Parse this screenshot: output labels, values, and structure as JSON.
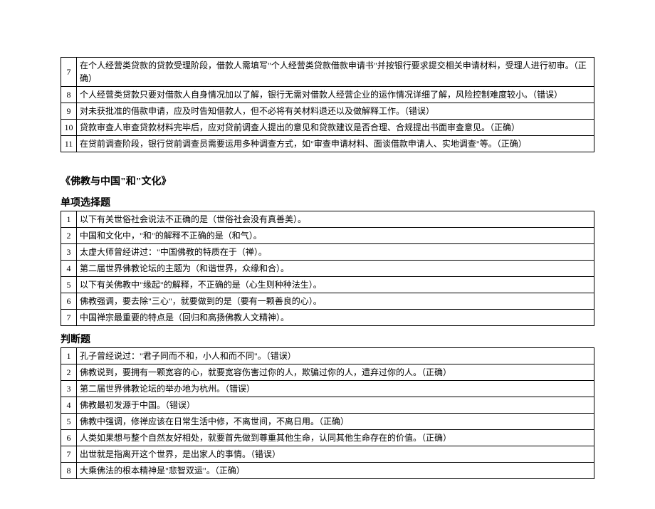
{
  "table1": {
    "rows": [
      {
        "n": "7",
        "t": "在个人经营类贷款的贷款受理阶段，借款人需填写\"个人经营类贷款借款申请书\"并按银行要求提交相关申请材料，受理人进行初审。（正确）"
      },
      {
        "n": "8",
        "t": "个人经营类贷款只要对借款人自身情况加以了解，银行无需对借款人经营企业的运作情况详细了解，风险控制难度较小。（错误）"
      },
      {
        "n": "9",
        "t": "对未获批准的借款申请，应及时告知借款人，但不必将有关材料退还以及做解释工作。（错误）"
      },
      {
        "n": "10",
        "t": "贷款审查人审查贷款材料完毕后，应对贷前调查人提出的意见和贷款建议是否合理、合规提出书面审查意见。（正确）"
      },
      {
        "n": "11",
        "t": "在贷前调查阶段，银行贷前调查员需要运用多种调查方式，如\"审查申请材料、面谈借款申请人、实地调查\"等。（正确）"
      }
    ]
  },
  "title2": "《佛教与中国\"和\"文化》",
  "sec_single": "单项选择题",
  "table2": {
    "rows": [
      {
        "n": "1",
        "t": "以下有关世俗社会说法不正确的是（世俗社会没有真善美）。"
      },
      {
        "n": "2",
        "t": "中国和文化中，\"和\"的解释不正确的是（和气）。"
      },
      {
        "n": "3",
        "t": "太虚大师曾经讲过：\"中国佛教的特质在于（禅）。"
      },
      {
        "n": "4",
        "t": "第二届世界佛教论坛的主题为（和谐世界，众缘和合）。"
      },
      {
        "n": "5",
        "t": "以下有关佛教中\"缘起\"的解释，不正确的是（心生则种种法生）。"
      },
      {
        "n": "6",
        "t": "佛教强调，要去除\"三心\"，就要做到的是（要有一颗善良的心）。"
      },
      {
        "n": "7",
        "t": "中国禅宗最重要的特点是（回归和高扬佛教人文精神）。"
      }
    ]
  },
  "sec_judge": "判断题",
  "table3": {
    "rows": [
      {
        "n": "1",
        "t": "孔子曾经说过：\"君子同而不和，小人和而不同\"。（错误）"
      },
      {
        "n": "2",
        "t": "佛教说到，要拥有一颗宽容的心，就要宽容伤害过你的人，欺骗过你的人，遗弃过你的人。（正确）"
      },
      {
        "n": "3",
        "t": "第二届世界佛教论坛的举办地为杭州。（错误）"
      },
      {
        "n": "4",
        "t": "佛教最初发源于中国。（错误）"
      },
      {
        "n": "5",
        "t": "佛教中强调，修禅应该在日常生活中修，不离世间，不离日用。（正确）"
      },
      {
        "n": "6",
        "t": "人类如果想与整个自然友好相处，就要首先做到尊重其他生命，认同其他生命存在的价值。（正确）"
      },
      {
        "n": "7",
        "t": "出世就是指离开这个世界，是出家人的事情。（错误）"
      },
      {
        "n": "8",
        "t": "大乘佛法的根本精神是\"悲智双运\"。（正确）"
      }
    ]
  }
}
